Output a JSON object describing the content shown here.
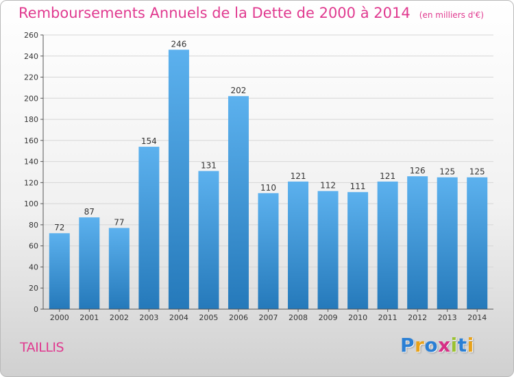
{
  "title": "Remboursements Annuels de la Dette de 2000 à 2014",
  "subtitle": "(en milliers d'€)",
  "location": "TAILLIS",
  "logo": {
    "letters": [
      "P",
      "r",
      "o",
      "x",
      "i",
      "t",
      "i"
    ],
    "colors": [
      "#2a7fd4",
      "#e8a21a",
      "#2a7fd4",
      "#d62e86",
      "#9ac231",
      "#2a7fd4",
      "#e8a21a"
    ]
  },
  "colors": {
    "bar_light": "#5cb1ee",
    "bar_dark": "#2579ba",
    "title": "#e0398f"
  },
  "chart_data": {
    "type": "bar",
    "categories": [
      "2000",
      "2001",
      "2002",
      "2003",
      "2004",
      "2005",
      "2006",
      "2007",
      "2008",
      "2009",
      "2010",
      "2011",
      "2012",
      "2013",
      "2014"
    ],
    "values": [
      72,
      87,
      77,
      154,
      246,
      131,
      202,
      110,
      121,
      112,
      111,
      121,
      126,
      125,
      125
    ],
    "value_labels": [
      "72",
      "87",
      "77",
      "154",
      "246",
      "131",
      "202",
      "110",
      "121",
      "112",
      "111",
      "121",
      "126",
      "125",
      "125"
    ],
    "ylim": [
      0,
      260
    ],
    "yticks": [
      0,
      20,
      40,
      60,
      80,
      100,
      120,
      140,
      160,
      180,
      200,
      220,
      240,
      260
    ],
    "grid": true
  }
}
